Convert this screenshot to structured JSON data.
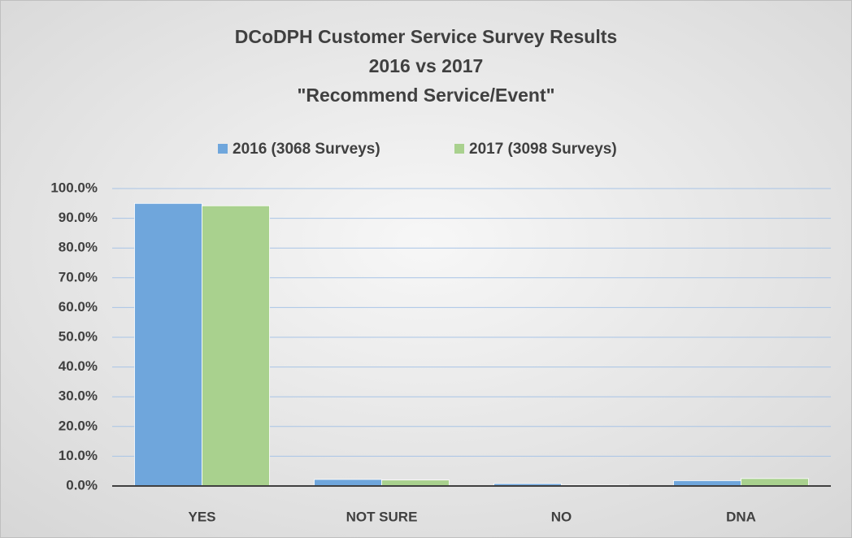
{
  "chart_data": {
    "type": "bar",
    "title": [
      "DCoDPH Customer Service Survey Results",
      "2016 vs 2017",
      "\"Recommend Service/Event\""
    ],
    "categories": [
      "YES",
      "NOT SURE",
      "NO",
      "DNA"
    ],
    "series": [
      {
        "name": "2016 (3068 Surveys)",
        "color": "#6fa6dc",
        "values": [
          95.0,
          2.2,
          0.8,
          1.8
        ]
      },
      {
        "name": "2017 (3098 Surveys)",
        "color": "#a9d18e",
        "values": [
          94.2,
          2.0,
          0.3,
          2.5
        ]
      }
    ],
    "ylim": [
      0,
      100
    ],
    "yticks": [
      {
        "value": 0,
        "label": "0.0%"
      },
      {
        "value": 10,
        "label": "10.0%"
      },
      {
        "value": 20,
        "label": "20.0%"
      },
      {
        "value": 30,
        "label": "30.0%"
      },
      {
        "value": 40,
        "label": "40.0%"
      },
      {
        "value": 50,
        "label": "50.0%"
      },
      {
        "value": 60,
        "label": "60.0%"
      },
      {
        "value": 70,
        "label": "70.0%"
      },
      {
        "value": 80,
        "label": "80.0%"
      },
      {
        "value": 90,
        "label": "90.0%"
      },
      {
        "value": 100,
        "label": "100.0%"
      }
    ],
    "grid": true,
    "legend": "top"
  }
}
